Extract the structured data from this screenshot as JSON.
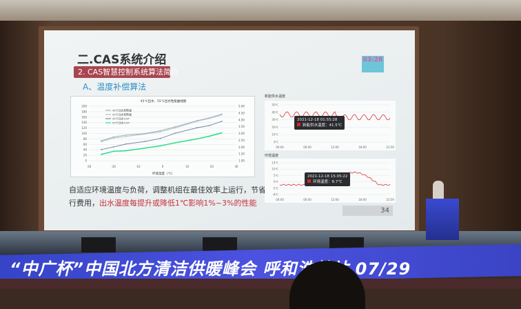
{
  "slide": {
    "title": "二.CAS系统介绍",
    "section_label": "2. CAS智慧控制系统算法简介",
    "subsection": "A、温度补偿算法",
    "body_line1": "自适应环境温度与负荷，调整机组在最佳效率上运行，节省运",
    "body_line2_plain": "行费用，",
    "body_line2_highlight": "出水温度每提升或降低1℃影响1%~3%的性能",
    "page_number": "34",
    "logo_text": "03:28",
    "highlight_color": "#c8303c",
    "label_color": "#a84650"
  },
  "right_charts": [
    {
      "title": "新能供水温度",
      "yticks": [
        "50℃",
        "40℃",
        "30℃",
        "20℃",
        "10℃",
        "0℃"
      ],
      "xticks": [
        "00:00",
        "06:00",
        "12:00",
        "18:00",
        "23:59"
      ],
      "tooltip_time": "2021-12-18 01:55:28",
      "tooltip_value": "新能供水温度：41.5℃"
    },
    {
      "title": "环境温度",
      "yticks": [
        "14℃",
        "10℃",
        "5℃",
        "0℃",
        "-5℃",
        "-8℃"
      ],
      "xticks": [
        "00:00",
        "06:00",
        "12:00",
        "18:00",
        "23:59"
      ],
      "tooltip_time": "2021-12-18 15:05:22",
      "tooltip_value": "环境温度：8.7℃"
    }
  ],
  "banner": {
    "text": "“中广杯”中国北方清洁供暖峰会  呼和浩特站  07/29",
    "color": "#3e48d4"
  },
  "chart_data": {
    "type": "line",
    "title": "45℃出水、55℃出水性能曲线图",
    "xlabel": "环境温度（℃）",
    "x": [
      -25,
      -20,
      -15,
      -7,
      -1,
      5,
      14,
      19,
      24
    ],
    "xlim": [
      -30,
      30
    ],
    "xticks": [
      -30,
      -20,
      -10,
      0,
      10,
      20,
      30
    ],
    "ylim": [
      0,
      200
    ],
    "yticks": [
      0,
      20,
      40,
      60,
      80,
      100,
      120,
      140,
      160,
      180,
      200
    ],
    "y2lim": [
      1.0,
      5.0
    ],
    "y2ticks": [
      "1.00",
      "1.50",
      "2.00",
      "2.50",
      "3.00",
      "3.50",
      "4.00",
      "4.50",
      "5.00"
    ],
    "grid": true,
    "legend": "top-left",
    "series": [
      {
        "name": "45℃出水制热量",
        "axis": "left",
        "color": "#9cb0b8",
        "values": [
          73,
          87,
          94,
          100,
          110,
          124,
          147,
          157,
          171
        ]
      },
      {
        "name": "55℃出水制热量",
        "axis": "left",
        "color": "#b0c4c8",
        "values": [
          70,
          83,
          89,
          98,
          106,
          120,
          145,
          155,
          168
        ]
      },
      {
        "name": "45℃出水COP",
        "axis": "right",
        "color": "#7886a4",
        "values": [
          1.82,
          2.01,
          2.22,
          2.42,
          2.63,
          3.01,
          3.42,
          3.58,
          3.89
        ]
      },
      {
        "name": "55℃出水COP",
        "axis": "right",
        "color": "#2ee08a",
        "values": [
          1.46,
          1.69,
          1.73,
          1.93,
          2.09,
          2.31,
          2.6,
          2.8,
          3.04
        ]
      }
    ]
  }
}
